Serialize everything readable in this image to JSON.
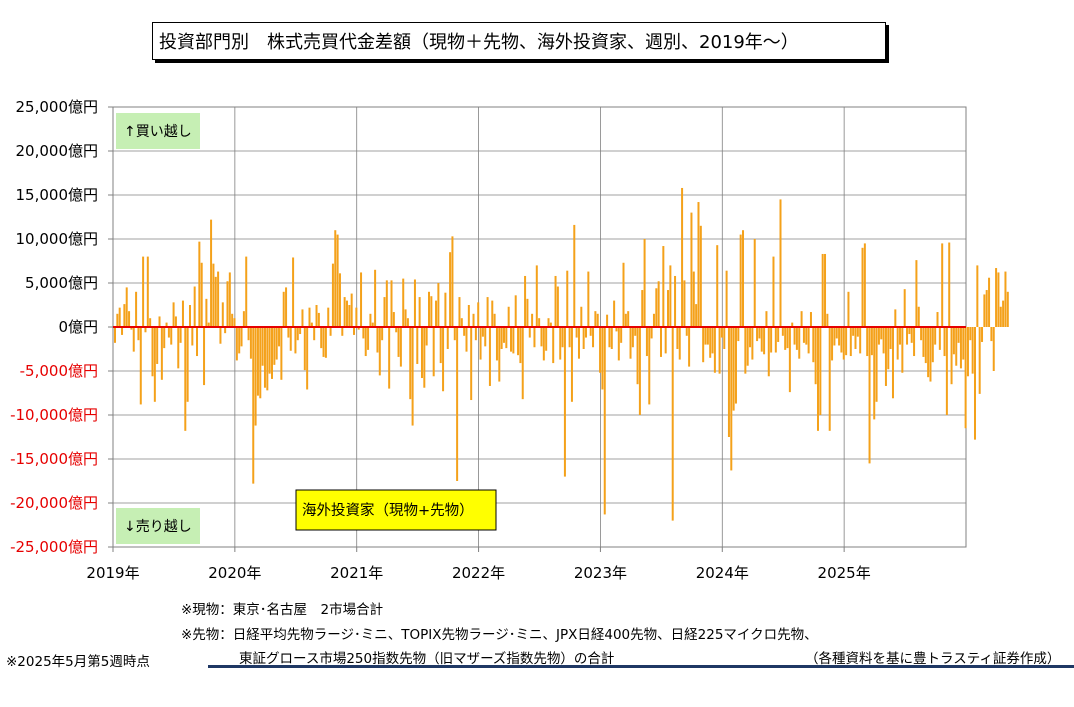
{
  "title": "投資部門別　株式売買代金差額（現物＋先物、海外投資家、週別、2019年～）",
  "chart_data": {
    "type": "bar",
    "yunit": "億円",
    "ylim": [
      -25000,
      25000
    ],
    "yticks": [
      "25,000億円",
      "20,000億円",
      "15,000億円",
      "10,000億円",
      "5,000億円",
      "0億円",
      "-5,000億円",
      "-10,000億円",
      "-15,000億円",
      "-20,000億円",
      "-25,000億円"
    ],
    "xticks": [
      "2019年",
      "2020年",
      "2021年",
      "2022年",
      "2023年",
      "2024年",
      "2025年"
    ],
    "xlim": [
      2019.0,
      2026.0
    ],
    "grid": true,
    "bar_color": "#f4a11a",
    "zero_line_color": "#e60000",
    "label_buy": "↑買い越し",
    "label_sell": "↓売り越し",
    "label_box_color": "#c6efb4",
    "series_label": "海外投資家（現物+先物）",
    "series_label_color": "#ffff00",
    "series": [
      {
        "x_start": 2019.0,
        "x_step": 0.01923,
        "values": [
          -1800,
          1500,
          2200,
          -900,
          2600,
          4500,
          1800,
          -300,
          -2800,
          4000,
          -1500,
          -8800,
          8000,
          -600,
          8000,
          1000,
          -5600,
          -8500,
          -4200,
          1200,
          -6000,
          -2400,
          500,
          -1200,
          -2000,
          2800,
          1200,
          -4700,
          -1800,
          3000,
          -11800,
          -8500,
          2500,
          -2100,
          4600,
          -3300,
          9700,
          7300,
          -6600,
          3200,
          500,
          12200,
          7200,
          5700,
          6300,
          -1900,
          2800,
          -700,
          5200,
          6200,
          1500,
          1000,
          -3800,
          -3000,
          -2200,
          1800,
          8000,
          -1500,
          -3600,
          -17800,
          -11200,
          -7800,
          -8100,
          -4400,
          -6900,
          -7200,
          -5300,
          -5900,
          -4300,
          -3700,
          -2200,
          -6000,
          4000,
          4500,
          -1200,
          -2700,
          7900,
          -3000,
          -1500,
          -800,
          2000,
          -4900,
          -7100,
          2200,
          500,
          -1500,
          2500,
          1600,
          -2400,
          -3400,
          -3500,
          2200,
          -1000,
          7200,
          11000,
          10500,
          6100,
          -1000,
          3400,
          3000,
          2500,
          3800,
          -900,
          2200,
          -300,
          6200,
          -1300,
          -3300,
          -2600,
          1500,
          500,
          6500,
          -2900,
          -5500,
          -1500,
          3400,
          5300,
          -7000,
          5300,
          1700,
          -600,
          -3400,
          -4500,
          5500,
          2000,
          1000,
          -8200,
          -11200,
          5400,
          -4200,
          3400,
          -5800,
          -6900,
          -2100,
          4000,
          3500,
          -5600,
          3000,
          5000,
          -4100,
          -7300,
          3900,
          -2500,
          8500,
          10300,
          -1500,
          -17500,
          3400,
          1000,
          -1000,
          -2800,
          2500,
          -8300,
          1500,
          -1500,
          2800,
          -3700,
          -1100,
          -2200,
          3400,
          -6700,
          3000,
          1500,
          -3800,
          -6200,
          -2500,
          -1800,
          -2400,
          2300,
          -2800,
          -3000,
          3600,
          -3200,
          -4100,
          -8200,
          5800,
          3200,
          -1200,
          1500,
          -2300,
          7000,
          1000,
          -2200,
          -3800,
          -2700,
          1000,
          500,
          -4100,
          5800,
          4600,
          -3700,
          -2300,
          -17000,
          6400,
          -2300,
          -8500,
          11600,
          -1200,
          -3600,
          2300,
          -2500,
          -1200,
          6300,
          -1000,
          -2300,
          1800,
          1500,
          -5200,
          -7100,
          -21300,
          1400,
          -2300,
          -2500,
          3000,
          -500,
          -3800,
          -1800,
          7300,
          1500,
          1800,
          -3600,
          -2300,
          -1000,
          -6500,
          -10000,
          4200,
          10000,
          -3300,
          -8800,
          -1300,
          1500,
          4400,
          5200,
          -3400,
          9200,
          -3000,
          4200,
          7000,
          -22000,
          5800,
          -2500,
          -3700,
          15800,
          5300,
          -1000,
          -4500,
          13000,
          6300,
          2600,
          14200,
          11500,
          -4000,
          -2000,
          -2000,
          -3500,
          -3000,
          -5200,
          9300,
          -5300,
          -1200,
          -2500,
          6400,
          -12500,
          -16300,
          -9500,
          -8700,
          -1600,
          10500,
          11000,
          -5300,
          -4400,
          -2300,
          -3700,
          10000,
          -1600,
          -1300,
          -2800,
          -3100,
          1800,
          -5600,
          -2900,
          8000,
          -2900,
          -1700,
          14500,
          -1000,
          -2600,
          -2400,
          -7400,
          500,
          -2000,
          -2600,
          -3600,
          1800,
          -1800,
          -2000,
          -3000,
          1700,
          -4000,
          -6500,
          -11800,
          -10000,
          8300,
          8300,
          1500,
          -11800,
          -3800,
          -2100,
          -1300,
          -2100,
          -2900,
          -3700,
          -3200,
          4000,
          -3300,
          -1000,
          -2500,
          -1100,
          -3000,
          9000,
          9500,
          -3300,
          -15500,
          -3200,
          -10500,
          -8500,
          -2000,
          -1400,
          -3000,
          -6700,
          -4800,
          -2500,
          -8100,
          2000,
          -3700,
          -2000,
          -5200,
          4300,
          -2000,
          -800,
          -1800,
          -3300,
          7600,
          2300,
          -1500,
          -3400,
          -4100,
          -5700,
          -6200,
          -4000,
          -2000,
          1700,
          -2600,
          9500,
          -3300,
          -10000,
          9600,
          -6500,
          -3100,
          -4400,
          -1800,
          -4700,
          -3700,
          -11500,
          -5600,
          -1500,
          -5300,
          -12800,
          7000,
          -7600,
          -1700,
          3700,
          4200,
          5600,
          -1600,
          -5000,
          6700,
          6200,
          2300,
          3000,
          6300,
          4000
        ]
      }
    ]
  },
  "notes": {
    "genbutsu": "※現物：東京･名古屋　2市場合計",
    "sakimono": "※先物：日経平均先物ラージ･ミニ、TOPIX先物ラージ･ミニ、JPX日経400先物、日経225マイクロ先物、",
    "sakimono2": "東証グロース市場250指数先物（旧マザーズ指数先物）の合計",
    "timepoint": "※2025年5月第5週時点",
    "source": "（各種資料を基に豊トラスティ証券作成）"
  }
}
